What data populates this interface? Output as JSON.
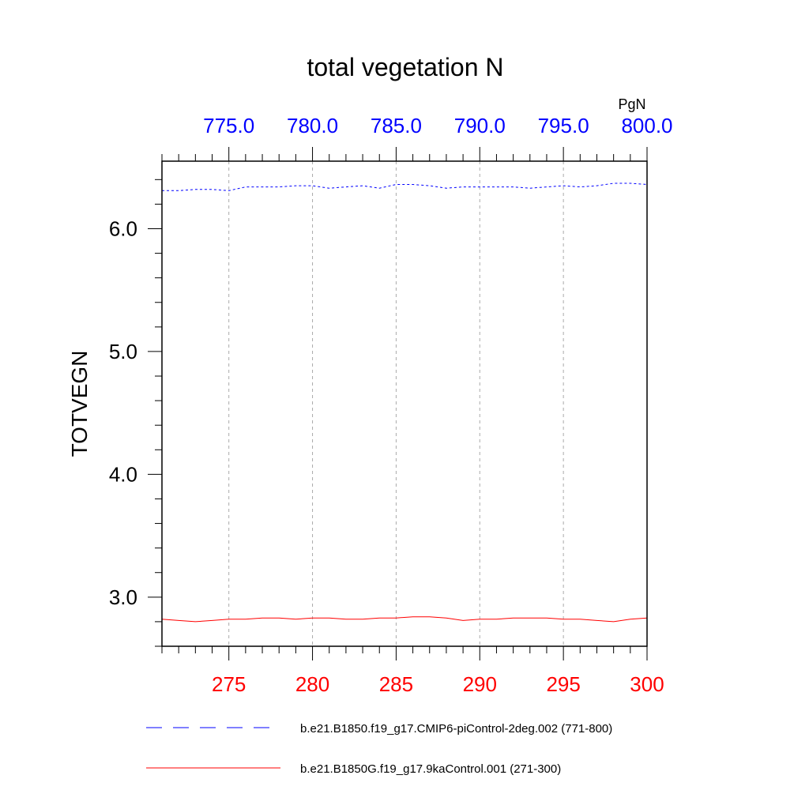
{
  "chart_data": {
    "type": "line",
    "title": "total vegetation N",
    "ylabel": "TOTVEGN",
    "units": "PgN",
    "ylim": [
      2.6,
      6.55
    ],
    "yticks": [
      "3.0",
      "4.0",
      "5.0",
      "6.0"
    ],
    "ytick_values": [
      3.0,
      4.0,
      5.0,
      6.0
    ],
    "x_bottom": {
      "range": [
        271,
        300
      ],
      "ticks": [
        "275",
        "280",
        "285",
        "290",
        "295",
        "300"
      ],
      "tick_values": [
        275,
        280,
        285,
        290,
        295,
        300
      ],
      "color": "#ff0000"
    },
    "x_top": {
      "range": [
        771,
        800
      ],
      "ticks": [
        "775.0",
        "780.0",
        "785.0",
        "790.0",
        "795.0",
        "800.0"
      ],
      "tick_values": [
        775,
        780,
        785,
        790,
        795,
        800
      ],
      "color": "#0000ff"
    },
    "grid": "vertical dashed",
    "legend_position": "bottom",
    "series": [
      {
        "name": "b.e21.B1850.f19_g17.CMIP6-piControl-2deg.002 (771-800)",
        "axis": "top",
        "color": "#0000ff",
        "style": "dashed",
        "x": [
          771,
          772,
          773,
          774,
          775,
          776,
          777,
          778,
          779,
          780,
          781,
          782,
          783,
          784,
          785,
          786,
          787,
          788,
          789,
          790,
          791,
          792,
          793,
          794,
          795,
          796,
          797,
          798,
          799,
          800
        ],
        "values": [
          6.31,
          6.31,
          6.32,
          6.32,
          6.31,
          6.34,
          6.34,
          6.34,
          6.35,
          6.35,
          6.33,
          6.34,
          6.35,
          6.33,
          6.36,
          6.36,
          6.35,
          6.33,
          6.34,
          6.34,
          6.34,
          6.34,
          6.33,
          6.34,
          6.35,
          6.34,
          6.35,
          6.37,
          6.37,
          6.36
        ]
      },
      {
        "name": "b.e21.B1850G.f19_g17.9kaControl.001 (271-300)",
        "axis": "bottom",
        "color": "#ff0000",
        "style": "solid",
        "x": [
          271,
          272,
          273,
          274,
          275,
          276,
          277,
          278,
          279,
          280,
          281,
          282,
          283,
          284,
          285,
          286,
          287,
          288,
          289,
          290,
          291,
          292,
          293,
          294,
          295,
          296,
          297,
          298,
          299,
          300
        ],
        "values": [
          2.82,
          2.81,
          2.8,
          2.81,
          2.82,
          2.82,
          2.83,
          2.83,
          2.82,
          2.83,
          2.83,
          2.82,
          2.82,
          2.83,
          2.83,
          2.84,
          2.84,
          2.83,
          2.81,
          2.82,
          2.82,
          2.83,
          2.83,
          2.83,
          2.82,
          2.82,
          2.81,
          2.8,
          2.82,
          2.83
        ]
      }
    ]
  }
}
